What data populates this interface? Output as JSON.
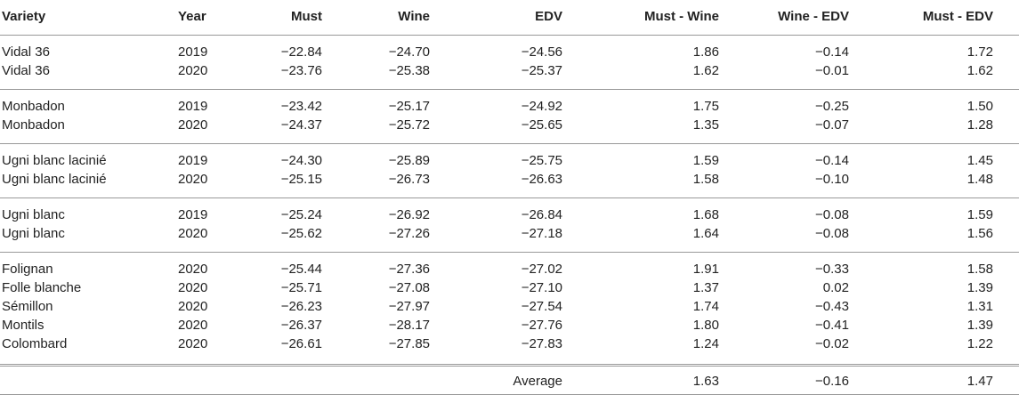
{
  "table": {
    "header": [
      "Variety",
      "Year",
      "Must",
      "Wine",
      "EDV",
      "Must - Wine",
      "Wine - EDV",
      "Must - EDV"
    ],
    "groups": [
      [
        [
          "Vidal 36",
          "2019",
          "−22.84",
          "−24.70",
          "−24.56",
          "1.86",
          "−0.14",
          "1.72"
        ],
        [
          "Vidal 36",
          "2020",
          "−23.76",
          "−25.38",
          "−25.37",
          "1.62",
          "−0.01",
          "1.62"
        ]
      ],
      [
        [
          "Monbadon",
          "2019",
          "−23.42",
          "−25.17",
          "−24.92",
          "1.75",
          "−0.25",
          "1.50"
        ],
        [
          "Monbadon",
          "2020",
          "−24.37",
          "−25.72",
          "−25.65",
          "1.35",
          "−0.07",
          "1.28"
        ]
      ],
      [
        [
          "Ugni blanc lacinié",
          "2019",
          "−24.30",
          "−25.89",
          "−25.75",
          "1.59",
          "−0.14",
          "1.45"
        ],
        [
          "Ugni blanc lacinié",
          "2020",
          "−25.15",
          "−26.73",
          "−26.63",
          "1.58",
          "−0.10",
          "1.48"
        ]
      ],
      [
        [
          "Ugni blanc",
          "2019",
          "−25.24",
          "−26.92",
          "−26.84",
          "1.68",
          "−0.08",
          "1.59"
        ],
        [
          "Ugni blanc",
          "2020",
          "−25.62",
          "−27.26",
          "−27.18",
          "1.64",
          "−0.08",
          "1.56"
        ]
      ],
      [
        [
          "Folignan",
          "2020",
          "−25.44",
          "−27.36",
          "−27.02",
          "1.91",
          "−0.33",
          "1.58"
        ],
        [
          "Folle blanche",
          "2020",
          "−25.71",
          "−27.08",
          "−27.10",
          "1.37",
          "0.02",
          "1.39"
        ],
        [
          "Sémillon",
          "2020",
          "−26.23",
          "−27.97",
          "−27.54",
          "1.74",
          "−0.43",
          "1.31"
        ],
        [
          "Montils",
          "2020",
          "−26.37",
          "−28.17",
          "−27.76",
          "1.80",
          "−0.41",
          "1.39"
        ],
        [
          "Colombard",
          "2020",
          "−26.61",
          "−27.85",
          "−27.83",
          "1.24",
          "−0.02",
          "1.22"
        ]
      ]
    ],
    "footer": [
      "Average",
      "1.63",
      "−0.16",
      "1.47"
    ]
  }
}
